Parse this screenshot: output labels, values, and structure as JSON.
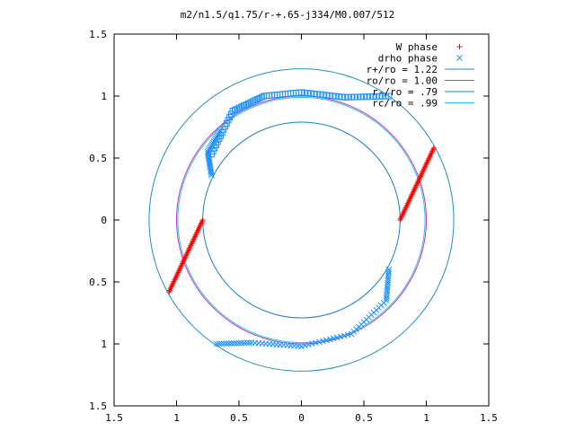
{
  "chart_data": {
    "type": "scatter",
    "title": "m2/n1.5/q1.75/r-+.65-j334/M0.007/512",
    "xlabel": "",
    "ylabel": "",
    "xlim": [
      -1.5,
      1.5
    ],
    "ylim": [
      -1.5,
      1.5
    ],
    "x_tick_labels": [
      "1.5",
      "1",
      "0.5",
      "0",
      "0.5",
      "1",
      "1.5"
    ],
    "y_tick_labels": [
      "1.5",
      "1",
      "0.5",
      "0",
      "0.5",
      "1",
      "1.5"
    ],
    "x_tick_values": [
      -1.5,
      -1,
      -0.5,
      0,
      0.5,
      1,
      1.5
    ],
    "y_tick_values": [
      1.5,
      1,
      0.5,
      0,
      -0.5,
      -1,
      -1.5
    ],
    "grid": false,
    "legend_position": "top-right",
    "legend": [
      {
        "label": "W phase",
        "marker": "plus",
        "color": "#ff0000"
      },
      {
        "label": "drho phase",
        "marker": "x",
        "color": "#1e90ff"
      },
      {
        "label": "r+/ro = 1.22",
        "marker": "line",
        "color": "#1c8fc9"
      },
      {
        "label": "ro/ro = 1.00",
        "marker": "line",
        "color": "#cc33cc"
      },
      {
        "label": "r-/ro = .79",
        "marker": "line",
        "color": "#1c7fc9"
      },
      {
        "label": "rc/ro = .99",
        "marker": "line",
        "color": "#29c6e0"
      }
    ],
    "circles": [
      {
        "name": "r+/ro = 1.22",
        "r": 1.22,
        "color": "#1c8fc9"
      },
      {
        "name": "ro/ro = 1.00",
        "r": 1.0,
        "color": "#cc33cc"
      },
      {
        "name": "r-/ro = .79",
        "r": 0.79,
        "color": "#1c7fc9"
      },
      {
        "name": "rc/ro = .99",
        "r": 0.99,
        "color": "#29c6e0"
      }
    ],
    "w_phase_segments": [
      {
        "start": [
          0.79,
          0.0
        ],
        "end": [
          1.06,
          0.58
        ]
      },
      {
        "start": [
          -0.79,
          0.0
        ],
        "end": [
          -1.06,
          -0.58
        ]
      }
    ],
    "drho_phase_segments": [
      {
        "kind": "square",
        "points": [
          [
            -0.72,
            0.53
          ],
          [
            -0.55,
            0.88
          ],
          [
            -0.3,
            1.0
          ],
          [
            0.0,
            1.03
          ],
          [
            0.35,
            0.99
          ],
          [
            0.7,
            1.0
          ]
        ]
      },
      {
        "kind": "x",
        "points": [
          [
            -0.72,
            0.36
          ],
          [
            -0.75,
            0.55
          ],
          [
            -0.65,
            0.72
          ]
        ]
      },
      {
        "kind": "x",
        "points": [
          [
            0.7,
            -0.4
          ],
          [
            0.68,
            -0.65
          ],
          [
            0.4,
            -0.92
          ],
          [
            0.0,
            -1.02
          ],
          [
            -0.4,
            -0.99
          ],
          [
            -0.68,
            -1.0
          ]
        ]
      }
    ],
    "colors": {
      "w_phase": "#ff0000",
      "drho_phase": "#1e90ff"
    }
  }
}
